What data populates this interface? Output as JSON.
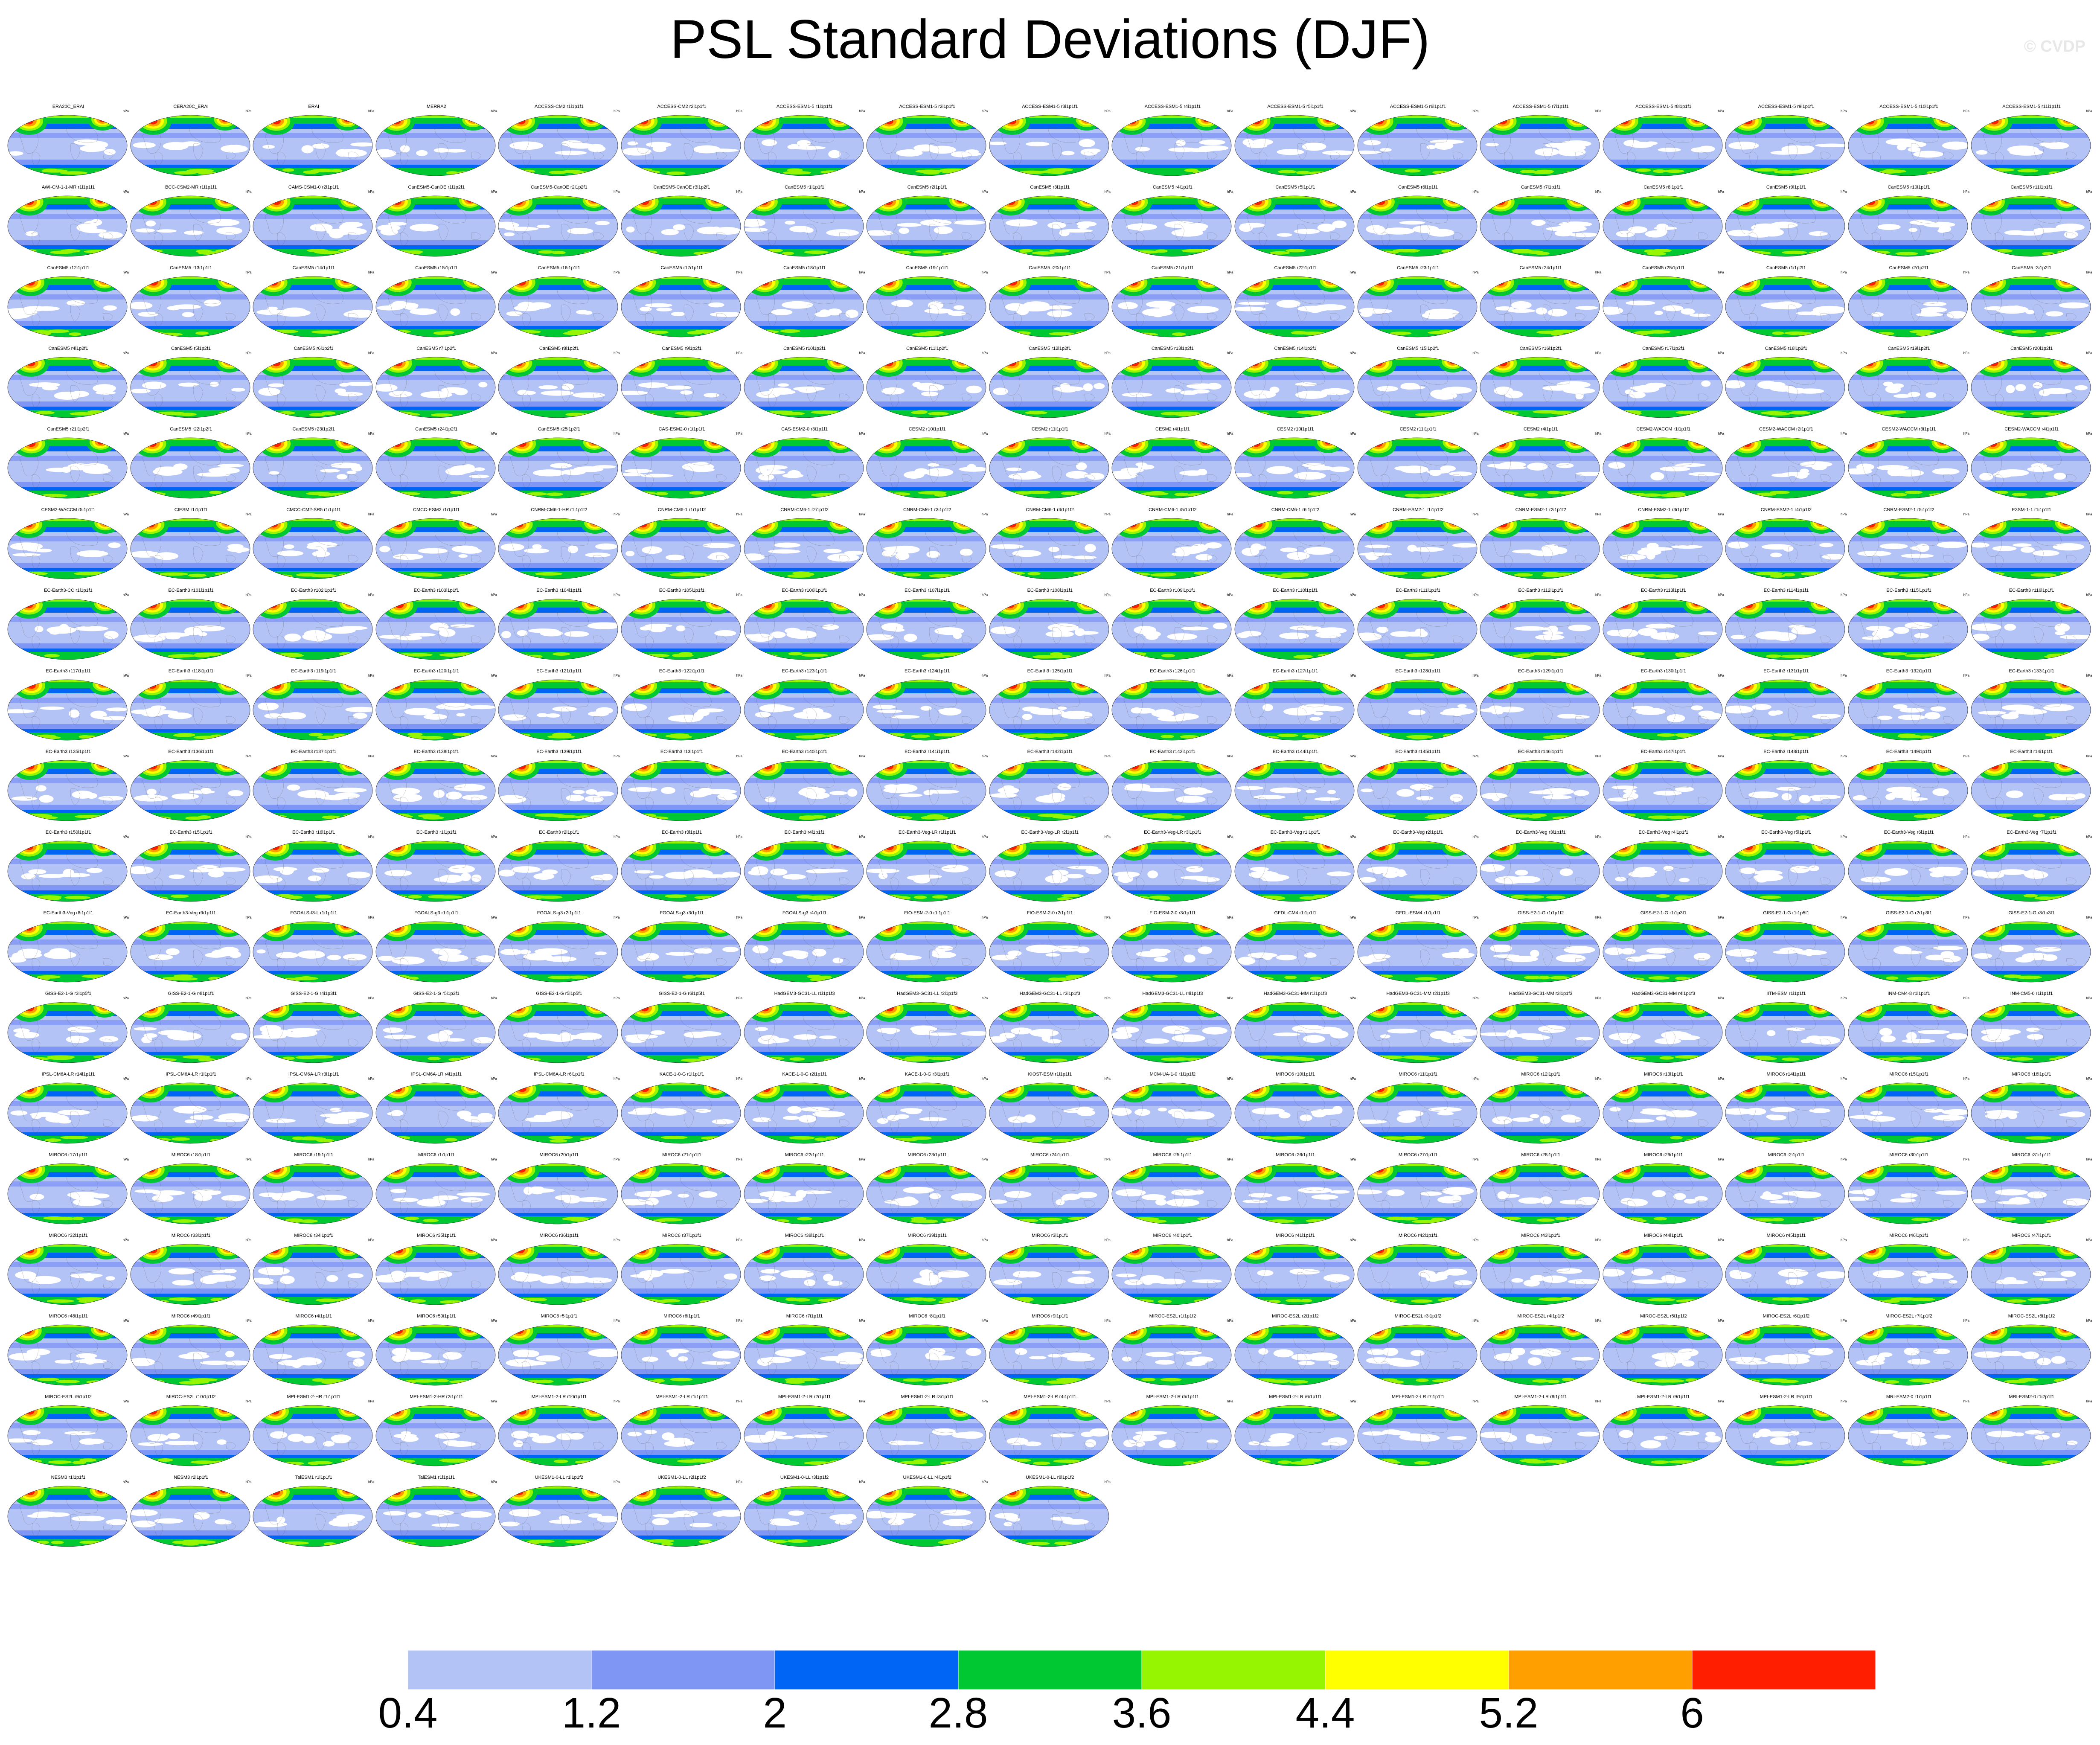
{
  "title": "PSL Standard Deviations (DJF)",
  "watermark": "© CVDP",
  "panel_unit": "hPa",
  "colorbar": {
    "colors": [
      "#ffffff",
      "#b4c3f5",
      "#8096f5",
      "#0064f5",
      "#00c832",
      "#96f500",
      "#ffff00",
      "#ffa000",
      "#ff1e00"
    ],
    "labels": [
      "0.4",
      "1.2",
      "2",
      "2.8",
      "3.6",
      "4.4",
      "5.2",
      "6"
    ]
  },
  "panel_titles": [
    "ERA20C_ERAI",
    "CERA20C_ERAI",
    "ERAI",
    "MERRA2",
    "ACCESS-CM2 r1i1p1f1",
    "ACCESS-CM2 r2i1p1f1",
    "ACCESS-ESM1-5 r1i1p1f1",
    "ACCESS-ESM1-5 r2i1p1f1",
    "ACCESS-ESM1-5 r3i1p1f1",
    "ACCESS-ESM1-5 r4i1p1f1",
    "ACCESS-ESM1-5 r5i1p1f1",
    "ACCESS-ESM1-5 r6i1p1f1",
    "ACCESS-ESM1-5 r7i1p1f1",
    "ACCESS-ESM1-5 r8i1p1f1",
    "ACCESS-ESM1-5 r9i1p1f1",
    "ACCESS-ESM1-5 r10i1p1f1",
    "ACCESS-ESM1-5 r11i1p1f1",
    "AWI-CM-1-1-MR r1i1p1f1",
    "BCC-CSM2-MR r1i1p1f1",
    "CAMS-CSM1-0 r2i1p1f1",
    "CanESM5-CanOE r1i1p2f1",
    "CanESM5-CanOE r2i1p2f1",
    "CanESM5-CanOE r3i1p2f1",
    "CanESM5 r1i1p1f1",
    "CanESM5 r2i1p1f1",
    "CanESM5 r3i1p1f1",
    "CanESM5 r4i1p1f1",
    "CanESM5 r5i1p1f1",
    "CanESM5 r6i1p1f1",
    "CanESM5 r7i1p1f1",
    "CanESM5 r8i1p1f1",
    "CanESM5 r9i1p1f1",
    "CanESM5 r10i1p1f1",
    "CanESM5 r11i1p1f1",
    "CanESM5 r12i1p1f1",
    "CanESM5 r13i1p1f1",
    "CanESM5 r14i1p1f1",
    "CanESM5 r15i1p1f1",
    "CanESM5 r16i1p1f1",
    "CanESM5 r17i1p1f1",
    "CanESM5 r18i1p1f1",
    "CanESM5 r19i1p1f1",
    "CanESM5 r20i1p1f1",
    "CanESM5 r21i1p1f1",
    "CanESM5 r22i1p1f1",
    "CanESM5 r23i1p1f1",
    "CanESM5 r24i1p1f1",
    "CanESM5 r25i1p1f1",
    "CanESM5 r1i1p2f1",
    "CanESM5 r2i1p2f1",
    "CanESM5 r3i1p2f1",
    "CanESM5 r4i1p2f1",
    "CanESM5 r5i1p2f1",
    "CanESM5 r6i1p2f1",
    "CanESM5 r7i1p2f1",
    "CanESM5 r8i1p2f1",
    "CanESM5 r9i1p2f1",
    "CanESM5 r10i1p2f1",
    "CanESM5 r11i1p2f1",
    "CanESM5 r12i1p2f1",
    "CanESM5 r13i1p2f1",
    "CanESM5 r14i1p2f1",
    "CanESM5 r15i1p2f1",
    "CanESM5 r16i1p2f1",
    "CanESM5 r17i1p2f1",
    "CanESM5 r18i1p2f1",
    "CanESM5 r19i1p2f1",
    "CanESM5 r20i1p2f1",
    "CanESM5 r21i1p2f1",
    "CanESM5 r22i1p2f1",
    "CanESM5 r23i1p2f1",
    "CanESM5 r24i1p2f1",
    "CanESM5 r25i1p2f1",
    "CAS-ESM2-0 r1i1p1f1",
    "CAS-ESM2-0 r3i1p1f1",
    "CESM2 r10i1p1f1",
    "CESM2 r11i1p1f1",
    "CESM2 r4i1p1f1",
    "CESM2 r10i1p1f1",
    "CESM2 r11i1p1f1",
    "CESM2 r4i1p1f1",
    "CESM2-WACCM r1i1p1f1",
    "CESM2-WACCM r2i1p1f1",
    "CESM2-WACCM r3i1p1f1",
    "CESM2-WACCM r4i1p1f1",
    "CESM2-WACCM r5i1p1f1",
    "CIESM r1i1p1f1",
    "CMCC-CM2-SR5 r1i1p1f1",
    "CMCC-ESM2 r1i1p1f1",
    "CNRM-CM6-1-HR r1i1p1f2",
    "CNRM-CM6-1 r1i1p1f2",
    "CNRM-CM6-1 r2i1p1f2",
    "CNRM-CM6-1 r3i1p1f2",
    "CNRM-CM6-1 r4i1p1f2",
    "CNRM-CM6-1 r5i1p1f2",
    "CNRM-CM6-1 r6i1p1f2",
    "CNRM-ESM2-1 r1i1p1f2",
    "CNRM-ESM2-1 r2i1p1f2",
    "CNRM-ESM2-1 r3i1p1f2",
    "CNRM-ESM2-1 r4i1p1f2",
    "CNRM-ESM2-1 r5i1p1f2",
    "E3SM-1-1 r1i1p1f1",
    "EC-Earth3-CC r1i1p1f1",
    "EC-Earth3 r101i1p1f1",
    "EC-Earth3 r102i1p1f1",
    "EC-Earth3 r103i1p1f1",
    "EC-Earth3 r104i1p1f1",
    "EC-Earth3 r105i1p1f1",
    "EC-Earth3 r106i1p1f1",
    "EC-Earth3 r107i1p1f1",
    "EC-Earth3 r108i1p1f1",
    "EC-Earth3 r109i1p1f1",
    "EC-Earth3 r110i1p1f1",
    "EC-Earth3 r111i1p1f1",
    "EC-Earth3 r112i1p1f1",
    "EC-Earth3 r113i1p1f1",
    "EC-Earth3 r114i1p1f1",
    "EC-Earth3 r115i1p1f1",
    "EC-Earth3 r116i1p1f1",
    "EC-Earth3 r117i1p1f1",
    "EC-Earth3 r118i1p1f1",
    "EC-Earth3 r119i1p1f1",
    "EC-Earth3 r120i1p1f1",
    "EC-Earth3 r121i1p1f1",
    "EC-Earth3 r122i1p1f1",
    "EC-Earth3 r123i1p1f1",
    "EC-Earth3 r124i1p1f1",
    "EC-Earth3 r125i1p1f1",
    "EC-Earth3 r126i1p1f1",
    "EC-Earth3 r127i1p1f1",
    "EC-Earth3 r128i1p1f1",
    "EC-Earth3 r129i1p1f1",
    "EC-Earth3 r130i1p1f1",
    "EC-Earth3 r131i1p1f1",
    "EC-Earth3 r132i1p1f1",
    "EC-Earth3 r133i1p1f1",
    "EC-Earth3 r135i1p1f1",
    "EC-Earth3 r136i1p1f1",
    "EC-Earth3 r137i1p1f1",
    "EC-Earth3 r138i1p1f1",
    "EC-Earth3 r139i1p1f1",
    "EC-Earth3 r13i1p1f1",
    "EC-Earth3 r140i1p1f1",
    "EC-Earth3 r141i1p1f1",
    "EC-Earth3 r142i1p1f1",
    "EC-Earth3 r143i1p1f1",
    "EC-Earth3 r144i1p1f1",
    "EC-Earth3 r145i1p1f1",
    "EC-Earth3 r146i1p1f1",
    "EC-Earth3 r147i1p1f1",
    "EC-Earth3 r148i1p1f1",
    "EC-Earth3 r149i1p1f1",
    "EC-Earth3 r14i1p1f1",
    "EC-Earth3 r150i1p1f1",
    "EC-Earth3 r15i1p1f1",
    "EC-Earth3 r16i1p1f1",
    "EC-Earth3 r1i1p1f1",
    "EC-Earth3 r2i1p1f1",
    "EC-Earth3 r3i1p1f1",
    "EC-Earth3 r4i1p1f1",
    "EC-Earth3-Veg-LR r1i1p1f1",
    "EC-Earth3-Veg-LR r2i1p1f1",
    "EC-Earth3-Veg-LR r3i1p1f1",
    "EC-Earth3-Veg r1i1p1f1",
    "EC-Earth3-Veg r2i1p1f1",
    "EC-Earth3-Veg r3i1p1f1",
    "EC-Earth3-Veg r4i1p1f1",
    "EC-Earth3-Veg r5i1p1f1",
    "EC-Earth3-Veg r6i1p1f1",
    "EC-Earth3-Veg r7i1p1f1",
    "EC-Earth3-Veg r8i1p1f1",
    "EC-Earth3-Veg r9i1p1f1",
    "FGOALS-f3-L r1i1p1f1",
    "FGOALS-g3 r1i1p1f1",
    "FGOALS-g3 r2i1p1f1",
    "FGOALS-g3 r3i1p1f1",
    "FGOALS-g3 r4i1p1f1",
    "FIO-ESM-2-0 r1i1p1f1",
    "FIO-ESM-2-0 r2i1p1f1",
    "FIO-ESM-2-0 r3i1p1f1",
    "GFDL-CM4 r1i1p1f1",
    "GFDL-ESM4 r1i1p1f1",
    "GISS-E2-1-G r1i1p1f2",
    "GISS-E2-1-G r1i1p3f1",
    "GISS-E2-1-G r1i1p5f1",
    "GISS-E2-1-G r2i1p3f1",
    "GISS-E2-1-G r3i1p3f1",
    "GISS-E2-1-G r3i1p5f1",
    "GISS-E2-1-G r4i1p1f1",
    "GISS-E2-1-G r4i1p3f1",
    "GISS-E2-1-G r5i1p3f1",
    "GISS-E2-1-G r5i1p5f1",
    "GISS-E2-1-G r6i1p5f1",
    "HadGEM3-GC31-LL r1i1p1f3",
    "HadGEM3-GC31-LL r2i1p1f3",
    "HadGEM3-GC31-LL r3i1p1f3",
    "HadGEM3-GC31-LL r4i1p1f3",
    "HadGEM3-GC31-MM r1i1p1f3",
    "HadGEM3-GC31-MM r2i1p1f3",
    "HadGEM3-GC31-MM r3i1p1f3",
    "HadGEM3-GC31-MM r4i1p1f3",
    "IITM-ESM r1i1p1f1",
    "INM-CM4-8 r1i1p1f1",
    "INM-CM5-0 r1i1p1f1",
    "IPSL-CM6A-LR r14i1p1f1",
    "IPSL-CM6A-LR r1i1p1f1",
    "IPSL-CM6A-LR r3i1p1f1",
    "IPSL-CM6A-LR r4i1p1f1",
    "IPSL-CM6A-LR r6i1p1f1",
    "KACE-1-0-G r1i1p1f1",
    "KACE-1-0-G r2i1p1f1",
    "KACE-1-0-G r3i1p1f1",
    "KIOST-ESM r1i1p1f1",
    "MCM-UA-1-0 r1i1p1f2",
    "MIROC6 r10i1p1f1",
    "MIROC6 r11i1p1f1",
    "MIROC6 r12i1p1f1",
    "MIROC6 r13i1p1f1",
    "MIROC6 r14i1p1f1",
    "MIROC6 r15i1p1f1",
    "MIROC6 r16i1p1f1",
    "MIROC6 r17i1p1f1",
    "MIROC6 r18i1p1f1",
    "MIROC6 r19i1p1f1",
    "MIROC6 r1i1p1f1",
    "MIROC6 r20i1p1f1",
    "MIROC6 r21i1p1f1",
    "MIROC6 r22i1p1f1",
    "MIROC6 r23i1p1f1",
    "MIROC6 r24i1p1f1",
    "MIROC6 r25i1p1f1",
    "MIROC6 r26i1p1f1",
    "MIROC6 r27i1p1f1",
    "MIROC6 r28i1p1f1",
    "MIROC6 r29i1p1f1",
    "MIROC6 r2i1p1f1",
    "MIROC6 r30i1p1f1",
    "MIROC6 r31i1p1f1",
    "MIROC6 r32i1p1f1",
    "MIROC6 r33i1p1f1",
    "MIROC6 r34i1p1f1",
    "MIROC6 r35i1p1f1",
    "MIROC6 r36i1p1f1",
    "MIROC6 r37i1p1f1",
    "MIROC6 r38i1p1f1",
    "MIROC6 r39i1p1f1",
    "MIROC6 r3i1p1f1",
    "MIROC6 r40i1p1f1",
    "MIROC6 r41i1p1f1",
    "MIROC6 r42i1p1f1",
    "MIROC6 r43i1p1f1",
    "MIROC6 r44i1p1f1",
    "MIROC6 r45i1p1f1",
    "MIROC6 r46i1p1f1",
    "MIROC6 r47i1p1f1",
    "MIROC6 r48i1p1f1",
    "MIROC6 r49i1p1f1",
    "MIROC6 r4i1p1f1",
    "MIROC6 r50i1p1f1",
    "MIROC6 r5i1p1f1",
    "MIROC6 r6i1p1f1",
    "MIROC6 r7i1p1f1",
    "MIROC6 r8i1p1f1",
    "MIROC6 r9i1p1f1",
    "MIROC-ES2L r1i1p1f2",
    "MIROC-ES2L r2i1p1f2",
    "MIROC-ES2L r3i1p1f2",
    "MIROC-ES2L r4i1p1f2",
    "MIROC-ES2L r5i1p1f2",
    "MIROC-ES2L r6i1p1f2",
    "MIROC-ES2L r7i1p1f2",
    "MIROC-ES2L r8i1p1f2",
    "MIROC-ES2L r9i1p1f2",
    "MIROC-ES2L r10i1p1f2",
    "MPI-ESM1-2-HR r1i1p1f1",
    "MPI-ESM1-2-HR r2i1p1f1",
    "MPI-ESM1-2-LR r10i1p1f1",
    "MPI-ESM1-2-LR r1i1p1f1",
    "MPI-ESM1-2-LR r2i1p1f1",
    "MPI-ESM1-2-LR r3i1p1f1",
    "MPI-ESM1-2-LR r4i1p1f1",
    "MPI-ESM1-2-LR r5i1p1f1",
    "MPI-ESM1-2-LR r6i1p1f1",
    "MPI-ESM1-2-LR r7i1p1f1",
    "MPI-ESM1-2-LR r8i1p1f1",
    "MPI-ESM1-2-LR r9i1p1f1",
    "MPI-ESM1-2-LR r9i1p1f1",
    "MRI-ESM2-0 r1i1p1f1",
    "MRI-ESM2-0 r1i2p1f1",
    "NESM3 r1i1p1f1",
    "NESM3 r2i1p1f1",
    "TaiESM1 r1i1p1f1",
    "TaiESM1 r1i1p1f1",
    "UKESM1-0-LL r1i1p1f2",
    "UKESM1-0-LL r2i1p1f2",
    "UKESM1-0-LL r3i1p1f2",
    "UKESM1-0-LL r4i1p1f2",
    "UKESM1-0-LL r8i1p1f2"
  ]
}
